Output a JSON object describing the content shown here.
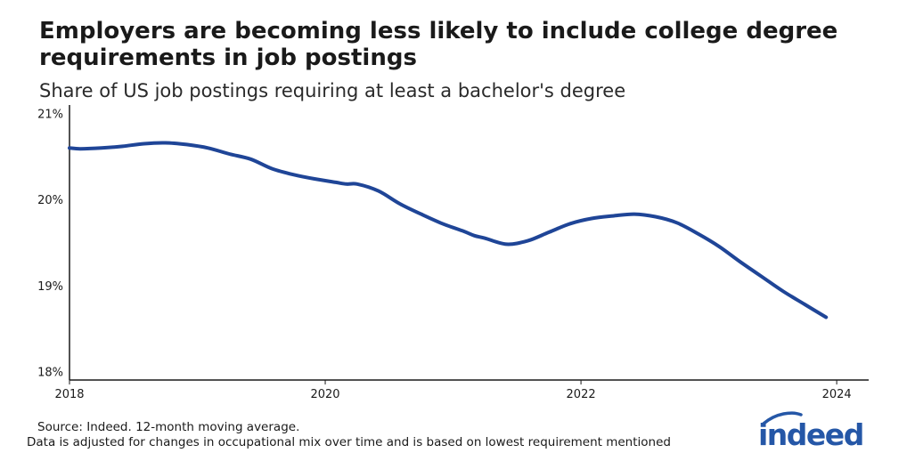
{
  "header": {
    "title": "Employers are becoming less likely to include college degree requirements in job postings",
    "subtitle": "Share of US job postings requiring at least a bachelor's degree"
  },
  "footer": {
    "source": "Source: Indeed. 12-month moving average.",
    "note": "Data is adjusted for changes in occupational mix over time and is based on lowest requirement mentioned"
  },
  "logo": {
    "text": "indeed",
    "color": "#2557a7"
  },
  "chart_data": {
    "type": "line",
    "title": "Employers are becoming less likely to include college degree requirements in job postings",
    "subtitle": "Share of US job postings requiring at least a bachelor's degree",
    "xlabel": "",
    "ylabel": "",
    "xlim": [
      "2018-01",
      "2024-04"
    ],
    "ylim": [
      17.9,
      21.1
    ],
    "y_ticks": [
      18,
      19,
      20,
      21
    ],
    "y_tick_labels": [
      "18%",
      "19%",
      "20%",
      "21%"
    ],
    "x_ticks": [
      "2018-01",
      "2020-01",
      "2022-01",
      "2024-01"
    ],
    "x_tick_labels": [
      "2018",
      "2020",
      "2022",
      "2024"
    ],
    "grid": false,
    "series_color": "#1f4597",
    "series": [
      {
        "x": [
          "2018-01",
          "2018-02",
          "2018-04",
          "2018-06",
          "2018-08",
          "2018-10",
          "2018-12",
          "2019-02",
          "2019-04",
          "2019-06",
          "2019-08",
          "2019-10",
          "2019-12",
          "2020-02",
          "2020-03",
          "2020-04",
          "2020-06",
          "2020-08",
          "2020-10",
          "2020-12",
          "2021-02",
          "2021-03",
          "2021-04",
          "2021-06",
          "2021-08",
          "2021-10",
          "2021-12",
          "2022-02",
          "2022-04",
          "2022-06",
          "2022-08",
          "2022-10",
          "2022-12",
          "2023-02",
          "2023-04",
          "2023-06",
          "2023-08",
          "2023-10",
          "2023-12"
        ],
        "values": [
          20.6,
          20.59,
          20.6,
          20.62,
          20.65,
          20.66,
          20.64,
          20.6,
          20.53,
          20.47,
          20.36,
          20.29,
          20.24,
          20.2,
          20.18,
          20.18,
          20.1,
          19.95,
          19.83,
          19.72,
          19.63,
          19.58,
          19.55,
          19.48,
          19.52,
          19.62,
          19.72,
          19.78,
          19.81,
          19.83,
          19.8,
          19.73,
          19.6,
          19.45,
          19.27,
          19.1,
          18.93,
          18.78,
          18.63
        ]
      }
    ]
  }
}
